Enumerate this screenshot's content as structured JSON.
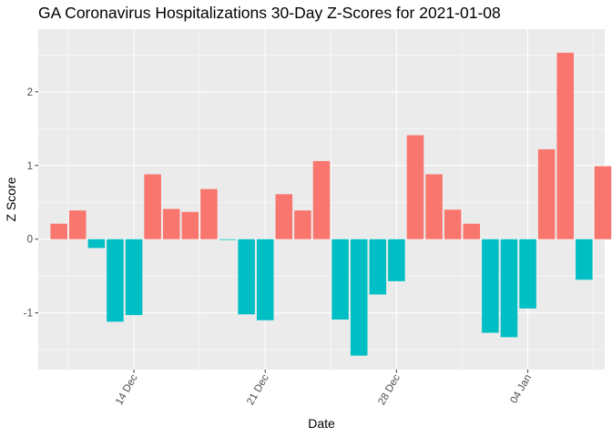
{
  "chart_data": {
    "type": "bar",
    "title": "GA Coronavirus Hospitalizations 30-Day Z-Scores for 2021-01-08",
    "xlabel": "Date",
    "ylabel": "Z Score",
    "x_tick_labels": [
      "14 Dec",
      "21 Dec",
      "28 Dec",
      "04 Jan"
    ],
    "y_tick_labels": [
      "-1",
      "0",
      "1",
      "2"
    ],
    "ylim": [
      -1.77,
      2.85
    ],
    "colors": {
      "positive": "#F8766D",
      "negative": "#00BFC4"
    },
    "legend": "none",
    "grid": true,
    "categories": [
      "2020-12-10",
      "2020-12-11",
      "2020-12-12",
      "2020-12-13",
      "2020-12-14",
      "2020-12-15",
      "2020-12-16",
      "2020-12-17",
      "2020-12-18",
      "2020-12-19",
      "2020-12-20",
      "2020-12-21",
      "2020-12-22",
      "2020-12-23",
      "2020-12-24",
      "2020-12-25",
      "2020-12-26",
      "2020-12-27",
      "2020-12-28",
      "2020-12-29",
      "2020-12-30",
      "2020-12-31",
      "2021-01-01",
      "2021-01-02",
      "2021-01-03",
      "2021-01-04",
      "2021-01-05",
      "2021-01-06",
      "2021-01-07",
      "2021-01-08"
    ],
    "values": [
      0.21,
      0.39,
      -0.12,
      -1.12,
      -1.03,
      0.88,
      0.41,
      0.37,
      0.68,
      -0.01,
      -1.02,
      -1.1,
      0.61,
      0.39,
      1.06,
      -1.09,
      -1.58,
      -0.75,
      -0.57,
      1.41,
      0.88,
      0.4,
      0.21,
      -1.27,
      -1.33,
      -0.94,
      1.22,
      2.53,
      -0.55,
      0.99
    ]
  }
}
